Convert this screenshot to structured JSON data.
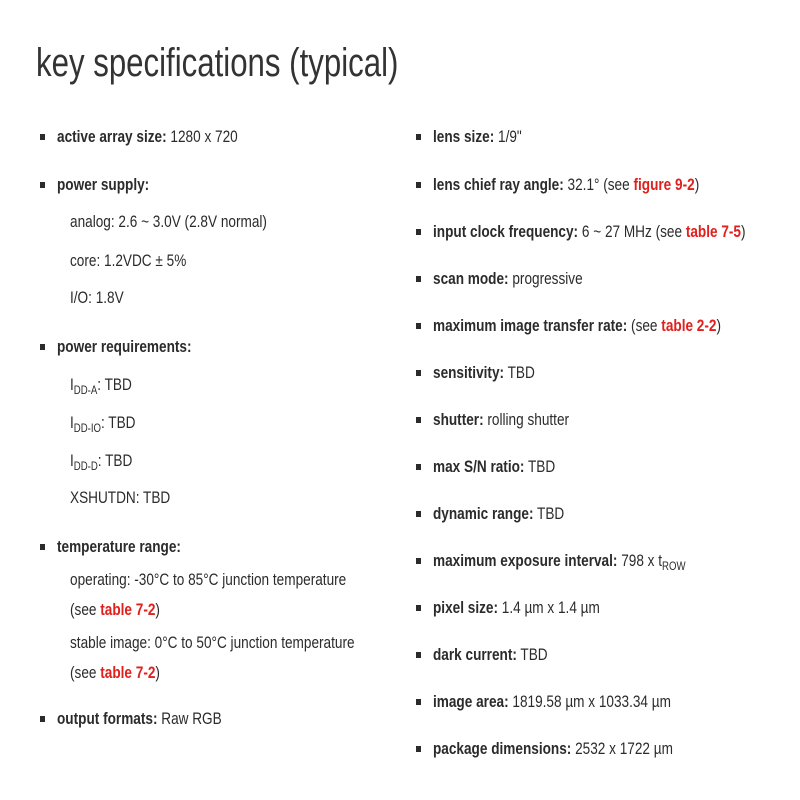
{
  "title": "key specifications (typical)",
  "left": {
    "active_array": {
      "label": "active array size:",
      "value": " 1280 x 720"
    },
    "power_supply": {
      "label": "power supply:",
      "analog": "analog: 2.6 ~ 3.0V (2.8V normal)",
      "core": "core: 1.2VDC ± 5%",
      "io": "I/O: 1.8V"
    },
    "power_req": {
      "label": "power requirements:",
      "i": "I",
      "sub_a": "DD-A",
      "sub_io": "DD-IO",
      "sub_d": "DD-D",
      "val": ": TBD",
      "xshutdn": "XSHUTDN: TBD"
    },
    "temp": {
      "label": "temperature range:",
      "operating": "operating: -30°C to 85°C junction temperature",
      "see": "(see ",
      "ref": "table 7-2",
      "close": ")",
      "stable": "stable image: 0°C to 50°C junction temperature"
    },
    "output": {
      "label": "output formats:",
      "value": " Raw RGB"
    }
  },
  "right": {
    "lens_size": {
      "label": "lens size:",
      "value": " 1/9\""
    },
    "cra": {
      "label": "lens chief ray angle:",
      "value": " 32.1° (see ",
      "ref": "figure 9-2",
      "close": ")"
    },
    "clock": {
      "label": "input clock frequency:",
      "value": " 6 ~ 27 MHz (see ",
      "ref": "table 7-5",
      "close": ")"
    },
    "scan": {
      "label": "scan mode:",
      "value": " progressive"
    },
    "transfer": {
      "label": "maximum image transfer rate:",
      "value": " (see ",
      "ref": "table 2-2",
      "close": ")"
    },
    "sensitivity": {
      "label": "sensitivity:",
      "value": " TBD"
    },
    "shutter": {
      "label": "shutter:",
      "value": " rolling shutter"
    },
    "sn": {
      "label": "max S/N ratio:",
      "value": " TBD"
    },
    "dr": {
      "label": "dynamic range:",
      "value": " TBD"
    },
    "exposure": {
      "label": "maximum exposure interval:",
      "value": " 798 x t",
      "sub": "ROW"
    },
    "pixel": {
      "label": "pixel size:",
      "value": " 1.4 µm x 1.4 µm"
    },
    "dark": {
      "label": "dark current:",
      "value": " TBD"
    },
    "area": {
      "label": "image area:",
      "value": " 1819.58 µm x 1033.34 µm"
    },
    "package": {
      "label": "package dimensions:",
      "value": " 2532 x 1722 µm"
    }
  },
  "colors": {
    "text": "#2b2b2b",
    "link": "#e0201c"
  }
}
